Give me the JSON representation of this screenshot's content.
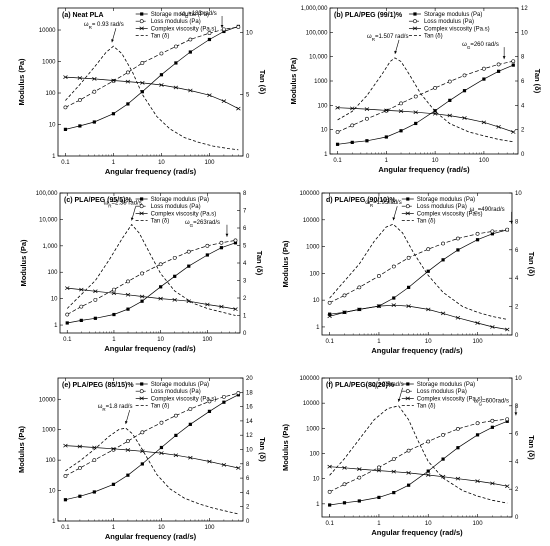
{
  "legend_labels": {
    "storage": "Storage modulus (Pa)",
    "loss": "Loss modulus (Pa)",
    "complex": "Complex viscosity (Pa.s)",
    "tan": "Tan (δ)"
  },
  "chart_data": [
    {
      "type": "line",
      "id": "a",
      "title": "(a) Neat PLA",
      "xlabel": "Angular frequency (rad/s)",
      "ylabel": "Modulus (Pa)",
      "y2label": "Tan (δ)",
      "xscale": "log",
      "xlim": [
        0.07,
        500
      ],
      "yscale": "log",
      "ylim": [
        1,
        50000
      ],
      "yticks": [
        1,
        10,
        100,
        1000,
        10000
      ],
      "yticklabels": [
        "1",
        "10",
        "100",
        "1000",
        "10000"
      ],
      "y2lim": [
        0,
        12
      ],
      "y2ticks": [
        0,
        5,
        10
      ],
      "y2ticklabels": [
        "0",
        "5",
        "10"
      ],
      "xticks": [
        0.1,
        1,
        10,
        100
      ],
      "xticklabels": [
        "0.1",
        "1",
        "10",
        "100"
      ],
      "x": [
        0.1,
        0.2,
        0.4,
        1,
        2,
        4,
        10,
        20,
        40,
        100,
        200,
        400
      ],
      "series": [
        {
          "name": "Storage modulus (Pa)",
          "values": [
            7,
            9,
            12,
            22,
            45,
            110,
            380,
            900,
            2000,
            5000,
            9000,
            13000
          ]
        },
        {
          "name": "Loss modulus (Pa)",
          "values": [
            35,
            60,
            110,
            240,
            450,
            900,
            1800,
            3000,
            5000,
            8000,
            10500,
            12500
          ]
        },
        {
          "name": "Complex viscosity (Pa.s)",
          "values": [
            320,
            300,
            280,
            250,
            230,
            210,
            180,
            150,
            120,
            85,
            55,
            32
          ]
        }
      ],
      "tan_delta": {
        "name": "Tan (δ)",
        "x": [
          0.1,
          0.2,
          0.4,
          0.7,
          1,
          1.5,
          2.5,
          4,
          8,
          15,
          30,
          60,
          120,
          250,
          400
        ],
        "values": [
          4.5,
          5.8,
          7.2,
          8.4,
          8.9,
          8.3,
          6.8,
          5.0,
          3.2,
          2.2,
          1.5,
          1.1,
          0.8,
          0.6,
          0.5
        ]
      },
      "annotations": [
        {
          "text": "ω",
          "sub": "R",
          "rest": "= 0.93 rad/s",
          "x": 0.93
        },
        {
          "text": "ω",
          "sub": "G",
          "rest": "=183 rad/s",
          "x": 183
        }
      ]
    },
    {
      "type": "line",
      "id": "b",
      "title": "(b) PLA/PEG (99/1)%",
      "xlabel": "Angular frequency (rad/s)",
      "ylabel": "Modulus (Pa)",
      "y2label": "Tan (δ)",
      "xscale": "log",
      "xlim": [
        0.07,
        500
      ],
      "yscale": "log",
      "ylim": [
        1,
        1000000
      ],
      "yticks": [
        1,
        10,
        100,
        1000,
        10000,
        100000,
        1000000
      ],
      "yticklabels": [
        "1",
        "10",
        "100",
        "1000",
        "10,000",
        "100,000",
        "1,000,000"
      ],
      "y2lim": [
        0,
        12
      ],
      "y2ticks": [
        0,
        2,
        4,
        6,
        8,
        10,
        12
      ],
      "y2ticklabels": [
        "0",
        "2",
        "4",
        "6",
        "8",
        "10",
        "12"
      ],
      "xticks": [
        0.1,
        1,
        10,
        100
      ],
      "xticklabels": [
        "0.1",
        "1",
        "10",
        "100"
      ],
      "x": [
        0.1,
        0.2,
        0.4,
        1,
        2,
        4,
        10,
        20,
        40,
        100,
        200,
        400
      ],
      "series": [
        {
          "name": "Storage modulus (Pa)",
          "values": [
            2.5,
            3,
            3.5,
            5,
            9,
            18,
            60,
            160,
            400,
            1200,
            2500,
            4500
          ]
        },
        {
          "name": "Loss modulus (Pa)",
          "values": [
            8,
            15,
            28,
            60,
            120,
            230,
            520,
            950,
            1700,
            3200,
            4800,
            6500
          ]
        },
        {
          "name": "Complex viscosity (Pa.s)",
          "values": [
            80,
            75,
            70,
            62,
            58,
            52,
            45,
            38,
            30,
            20,
            13,
            8
          ]
        }
      ],
      "tan_delta": {
        "name": "Tan (δ)",
        "x": [
          0.1,
          0.2,
          0.4,
          0.8,
          1.2,
          1.5,
          2,
          3,
          5,
          10,
          20,
          50,
          100,
          200,
          400
        ],
        "values": [
          2.8,
          3.5,
          4.8,
          6.5,
          7.6,
          7.9,
          7.6,
          6.5,
          5.0,
          3.5,
          2.5,
          1.8,
          1.5,
          1.2,
          1.0
        ]
      },
      "annotations": [
        {
          "text": "ω",
          "sub": "R",
          "rest": "=1.507 rad/s",
          "x": 1.507
        },
        {
          "text": "ω",
          "sub": "G",
          "rest": "=260 rad/s",
          "x": 260
        }
      ]
    },
    {
      "type": "line",
      "id": "c",
      "title": "(c) PLA/PEG (95/5)%",
      "xlabel": "Angular frequency (rad/s)",
      "ylabel": "Modulus (Pa)",
      "y2label": "Tan (δ)",
      "xscale": "log",
      "xlim": [
        0.07,
        500
      ],
      "yscale": "log",
      "ylim": [
        0.5,
        100000
      ],
      "yticks": [
        1,
        10,
        100,
        1000,
        10000,
        100000
      ],
      "yticklabels": [
        "1",
        "10",
        "100",
        "1,000",
        "10,000",
        "100,000"
      ],
      "y2lim": [
        0,
        8
      ],
      "y2ticks": [
        0,
        1,
        2,
        3,
        4,
        5,
        6,
        7,
        8
      ],
      "y2ticklabels": [
        "0",
        "1",
        "2",
        "3",
        "4",
        "5",
        "6",
        "7",
        "8"
      ],
      "xticks": [
        0.1,
        1,
        10,
        100
      ],
      "xticklabels": [
        "0.1",
        "1",
        "10",
        "100"
      ],
      "x": [
        0.1,
        0.2,
        0.4,
        1,
        2,
        4,
        10,
        20,
        40,
        100,
        200,
        400
      ],
      "series": [
        {
          "name": "Storage modulus (Pa)",
          "values": [
            1.2,
            1.5,
            1.8,
            2.5,
            4,
            8,
            28,
            70,
            170,
            450,
            850,
            1300
          ]
        },
        {
          "name": "Loss modulus (Pa)",
          "values": [
            2.5,
            5,
            9,
            22,
            45,
            90,
            200,
            350,
            600,
            1000,
            1300,
            1600
          ]
        },
        {
          "name": "Complex viscosity (Pa.s)",
          "values": [
            25,
            22,
            19,
            16,
            14,
            12,
            10,
            9,
            8,
            6,
            5,
            4
          ]
        }
      ],
      "tan_delta": {
        "name": "Tan (δ)",
        "x": [
          0.1,
          0.2,
          0.4,
          0.8,
          1.5,
          2.4,
          3.5,
          6,
          10,
          20,
          50,
          100,
          200,
          400
        ],
        "values": [
          1.4,
          2.2,
          3.0,
          4.2,
          5.4,
          6.2,
          5.7,
          4.5,
          3.4,
          2.4,
          1.7,
          1.4,
          1.2,
          1.0
        ]
      },
      "annotations": [
        {
          "text": "ω",
          "sub": "R",
          "rest": "=2.39 rad/s",
          "x": 2.39
        },
        {
          "text": "ω",
          "sub": "G",
          "rest": "=263rad/s",
          "x": 263
        }
      ]
    },
    {
      "type": "line",
      "id": "d",
      "title": "d) PLA/PEG (90/10)%",
      "xlabel": "Angular frequency (rad/s)",
      "ylabel": "Modulus (Pa)",
      "y2label": "Tan (δ)",
      "xscale": "log",
      "xlim": [
        0.07,
        500
      ],
      "yscale": "log",
      "ylim": [
        0.5,
        100000
      ],
      "yticks": [
        1,
        10,
        100,
        1000,
        10000,
        100000
      ],
      "yticklabels": [
        "1",
        "10",
        "100",
        "1000",
        "10000",
        "100000"
      ],
      "y2lim": [
        0,
        10
      ],
      "y2ticks": [
        0,
        2,
        4,
        6,
        8,
        10
      ],
      "y2ticklabels": [
        "0",
        "2",
        "4",
        "6",
        "8",
        "10"
      ],
      "xticks": [
        0.1,
        1,
        10,
        100
      ],
      "xticklabels": [
        "0.1",
        "1",
        "10",
        "100"
      ],
      "x": [
        0.1,
        0.2,
        0.4,
        1,
        2,
        4,
        10,
        20,
        40,
        100,
        200,
        400
      ],
      "series": [
        {
          "name": "Storage modulus (Pa)",
          "values": [
            3,
            3.5,
            4.5,
            6,
            12,
            30,
            120,
            320,
            750,
            1800,
            3000,
            4200
          ]
        },
        {
          "name": "Loss modulus (Pa)",
          "values": [
            8,
            15,
            30,
            80,
            180,
            380,
            800,
            1300,
            2000,
            3000,
            3700,
            4300
          ]
        },
        {
          "name": "Complex viscosity (Pa.s)",
          "values": [
            2.5,
            3.5,
            4.5,
            6,
            6.5,
            6,
            4.5,
            3.2,
            2.2,
            1.4,
            1,
            0.8
          ]
        }
      ],
      "tan_delta": {
        "name": "Tan (δ)",
        "x": [
          0.1,
          0.2,
          0.4,
          0.8,
          1.4,
          1.95,
          3,
          5,
          10,
          20,
          50,
          100,
          200,
          400
        ],
        "values": [
          2.6,
          3.8,
          5.0,
          6.6,
          7.6,
          7.8,
          7.2,
          5.8,
          4.2,
          3.0,
          2.0,
          1.6,
          1.3,
          1.1
        ]
      },
      "annotations": [
        {
          "text": "ω",
          "sub": "R",
          "rest": "=1.95rad/s",
          "x": 1.95
        },
        {
          "text": "ω",
          "sub": "G",
          "rest": "=490rad/s",
          "x": 490
        }
      ]
    },
    {
      "type": "line",
      "id": "e",
      "title": "(e) PLA/PEG (85/15)%",
      "xlabel": "Angular frequency (rad/s)",
      "ylabel": "Modulus (Pa)",
      "y2label": "Tan (δ)",
      "xscale": "log",
      "xlim": [
        0.07,
        500
      ],
      "yscale": "log",
      "ylim": [
        1,
        50000
      ],
      "yticks": [
        1,
        10,
        100,
        1000,
        10000
      ],
      "yticklabels": [
        "1",
        "10",
        "100",
        "1000",
        "10000"
      ],
      "y2lim": [
        0,
        20
      ],
      "y2ticks": [
        0,
        2,
        4,
        6,
        8,
        10,
        12,
        14,
        16,
        18,
        20
      ],
      "y2ticklabels": [
        "0",
        "2",
        "4",
        "6",
        "8",
        "10",
        "12",
        "14",
        "16",
        "18",
        "20"
      ],
      "xticks": [
        0.1,
        1,
        10,
        100
      ],
      "xticklabels": [
        "0.1",
        "1",
        "10",
        "100"
      ],
      "x": [
        0.1,
        0.2,
        0.4,
        1,
        2,
        4,
        10,
        20,
        40,
        100,
        200,
        400
      ],
      "series": [
        {
          "name": "Storage modulus (Pa)",
          "values": [
            5,
            6.5,
            9,
            16,
            32,
            75,
            260,
            650,
            1500,
            4000,
            8000,
            14000
          ]
        },
        {
          "name": "Loss modulus (Pa)",
          "values": [
            30,
            55,
            100,
            220,
            420,
            820,
            1700,
            2900,
            4800,
            8500,
            12000,
            16000
          ]
        },
        {
          "name": "Complex viscosity (Pa.s)",
          "values": [
            300,
            280,
            260,
            235,
            215,
            195,
            170,
            145,
            120,
            90,
            70,
            55
          ]
        }
      ],
      "tan_delta": {
        "name": "Tan (δ)",
        "x": [
          0.1,
          0.2,
          0.4,
          0.8,
          1.3,
          1.8,
          2.5,
          4,
          8,
          15,
          30,
          60,
          120,
          250,
          400
        ],
        "values": [
          7.0,
          8.4,
          10.0,
          11.8,
          12.8,
          13.0,
          12.2,
          10.0,
          6.5,
          4.5,
          3.2,
          2.4,
          1.8,
          1.3,
          1.0
        ]
      },
      "annotations": [
        {
          "text": "ω",
          "sub": "R",
          "rest": "=1.8 rad/s",
          "x": 1.8
        }
      ]
    },
    {
      "type": "line",
      "id": "f",
      "title": "(f) PLA/PEG(80/20)%",
      "xlabel": "Angular frequency (rad/s)",
      "ylabel": "Modulus (Pa)",
      "y2label": "Tan (δ)",
      "xscale": "log",
      "xlim": [
        0.07,
        500
      ],
      "yscale": "log",
      "ylim": [
        0.3,
        100000
      ],
      "yticks": [
        1,
        10,
        100,
        1000,
        10000,
        100000
      ],
      "yticklabels": [
        "1",
        "10",
        "100",
        "1000",
        "10000",
        "100000"
      ],
      "y2lim": [
        0,
        10
      ],
      "y2ticks": [
        0,
        2,
        4,
        6,
        8,
        10
      ],
      "y2ticklabels": [
        "0",
        "2",
        "4",
        "6",
        "8",
        "10"
      ],
      "xticks": [
        0.1,
        1,
        10,
        100
      ],
      "xticklabels": [
        "0.1",
        "1",
        "10",
        "100"
      ],
      "x": [
        0.1,
        0.2,
        0.4,
        1,
        2,
        4,
        10,
        20,
        40,
        100,
        200,
        400
      ],
      "series": [
        {
          "name": "Storage modulus (Pa)",
          "values": [
            0.9,
            1.1,
            1.3,
            1.8,
            2.8,
            5.5,
            20,
            60,
            170,
            550,
            1100,
            1900
          ]
        },
        {
          "name": "Loss modulus (Pa)",
          "values": [
            3,
            6,
            11,
            28,
            60,
            130,
            300,
            550,
            950,
            1600,
            2000,
            2300
          ]
        },
        {
          "name": "Complex viscosity (Pa.s)",
          "values": [
            30,
            27,
            24,
            21,
            19,
            17,
            14,
            12,
            10,
            8,
            6.5,
            5
          ]
        }
      ],
      "tan_delta": {
        "name": "Tan (δ)",
        "x": [
          0.1,
          0.2,
          0.4,
          0.8,
          1.5,
          2.5,
          4,
          6,
          10,
          20,
          50,
          100,
          200,
          400
        ],
        "values": [
          3.0,
          4.2,
          5.6,
          7.0,
          7.8,
          8.0,
          7.0,
          5.6,
          4.0,
          2.8,
          1.9,
          1.5,
          1.2,
          1.0
        ]
      },
      "annotations": [
        {
          "text": "ω",
          "sub": "R",
          "rest": "=2.5rad/s",
          "x": 2.5
        },
        {
          "text": "ω",
          "sub": "G",
          "rest": "=600rad/s",
          "x": 600
        }
      ]
    }
  ]
}
